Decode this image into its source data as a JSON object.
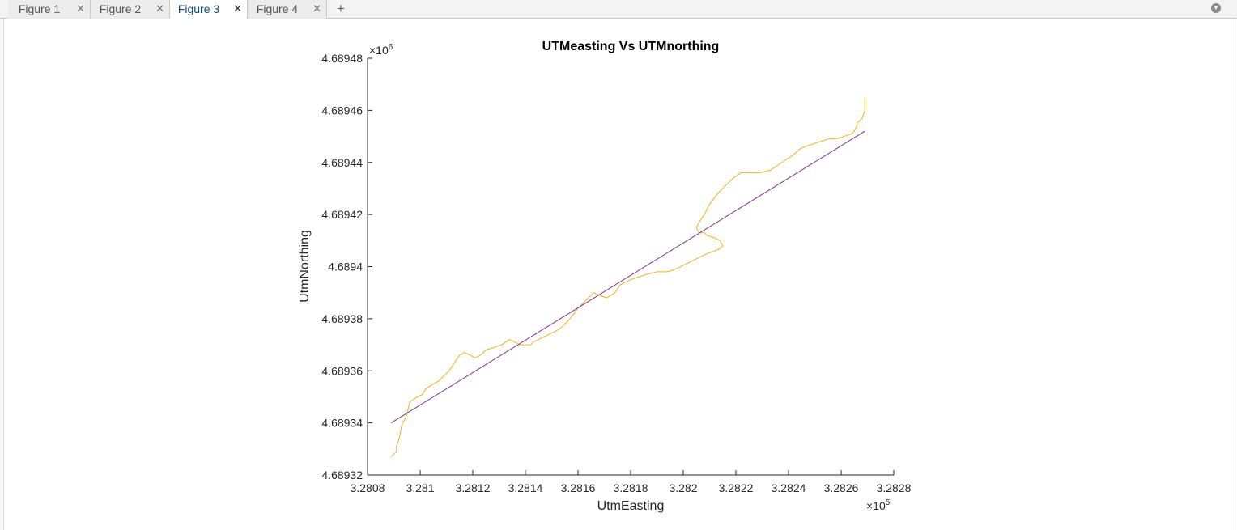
{
  "tabs": [
    {
      "label": "Figure 1",
      "active": false
    },
    {
      "label": "Figure 2",
      "active": false
    },
    {
      "label": "Figure 3",
      "active": true
    },
    {
      "label": "Figure 4",
      "active": false
    }
  ],
  "icons": {
    "close": "close-icon",
    "add": "plus-icon",
    "menu": "chevron-down-icon"
  },
  "chart_data": {
    "type": "line",
    "title": "UTMeasting Vs UTMnorthing",
    "xlabel": "UtmEasting",
    "ylabel": "UtmNorthing",
    "x_scale": "×10",
    "x_exponent": "5",
    "y_scale": "×10",
    "y_exponent": "6",
    "xlim": [
      3.2808,
      3.2828
    ],
    "ylim": [
      4.68932,
      4.68948
    ],
    "xticks": [
      3.2808,
      3.281,
      3.2812,
      3.2814,
      3.2816,
      3.2818,
      3.282,
      3.2822,
      3.2824,
      3.2826,
      3.2828
    ],
    "xtick_labels": [
      "3.2808",
      "3.281",
      "3.2812",
      "3.2814",
      "3.2816",
      "3.2818",
      "3.282",
      "3.2822",
      "3.2824",
      "3.2826",
      "3.2828"
    ],
    "yticks": [
      4.68932,
      4.68934,
      4.68936,
      4.68938,
      4.6894,
      4.68942,
      4.68944,
      4.68946,
      4.68948
    ],
    "ytick_labels": [
      "4.68932",
      "4.68934",
      "4.68936",
      "4.68938",
      "4.6894",
      "4.68942",
      "4.68944",
      "4.68946",
      "4.68948"
    ],
    "grid": false,
    "series": [
      {
        "color": "#EDB120",
        "x": [
          3.28089,
          3.2809,
          3.28091,
          3.28091,
          3.28092,
          3.28093,
          3.28095,
          3.28096,
          3.28099,
          3.28101,
          3.28102,
          3.28105,
          3.28107,
          3.28109,
          3.28111,
          3.28113,
          3.28115,
          3.28117,
          3.28119,
          3.28121,
          3.28123,
          3.28125,
          3.28128,
          3.28131,
          3.28134,
          3.28136,
          3.28138,
          3.2814,
          3.28142,
          3.28143,
          3.28145,
          3.28149,
          3.28153,
          3.28157,
          3.2816,
          3.28163,
          3.28166,
          3.28168,
          3.28171,
          3.28174,
          3.28176,
          3.28178,
          3.2818,
          3.28183,
          3.28186,
          3.2819,
          3.28194,
          3.28197,
          3.28201,
          3.28205,
          3.28209,
          3.28212,
          3.28214,
          3.28215,
          3.28214,
          3.28212,
          3.28209,
          3.28208,
          3.28206,
          3.28205,
          3.28206,
          3.28208,
          3.2821,
          3.28213,
          3.28216,
          3.28219,
          3.28222,
          3.28225,
          3.28229,
          3.28233,
          3.28236,
          3.28239,
          3.28242,
          3.28244,
          3.28246,
          3.28249,
          3.28252,
          3.28255,
          3.28258,
          3.28261,
          3.28264,
          3.28265,
          3.28266,
          3.28266,
          3.28267,
          3.28268,
          3.28269,
          3.28269
        ],
        "y": [
          4.689327,
          4.689328,
          4.689329,
          4.689331,
          4.689334,
          4.689339,
          4.689343,
          4.689348,
          4.68935,
          4.689351,
          4.689353,
          4.689355,
          4.689356,
          4.689358,
          4.68936,
          4.689363,
          4.689366,
          4.689367,
          4.689366,
          4.689365,
          4.689366,
          4.689368,
          4.689369,
          4.68937,
          4.689372,
          4.689371,
          4.68937,
          4.68937,
          4.68937,
          4.689371,
          4.689372,
          4.689374,
          4.689376,
          4.68938,
          4.689384,
          4.689387,
          4.68939,
          4.689389,
          4.689388,
          4.68939,
          4.689393,
          4.689394,
          4.689395,
          4.689396,
          4.689397,
          4.689398,
          4.689398,
          4.689399,
          4.689401,
          4.689403,
          4.689405,
          4.689406,
          4.689407,
          4.689408,
          4.68941,
          4.689411,
          4.689412,
          4.689413,
          4.689413,
          4.689415,
          4.689417,
          4.68942,
          4.689424,
          4.689428,
          4.689431,
          4.689434,
          4.689436,
          4.689436,
          4.689436,
          4.689437,
          4.689439,
          4.689441,
          4.689443,
          4.689445,
          4.689446,
          4.689447,
          4.689448,
          4.689449,
          4.689449,
          4.68945,
          4.689451,
          4.689452,
          4.689454,
          4.689455,
          4.689456,
          4.689457,
          4.68946,
          4.689465
        ]
      },
      {
        "color": "#7E2F8E",
        "x": [
          3.28089,
          3.28269
        ],
        "y": [
          4.68934,
          4.689452
        ]
      }
    ]
  }
}
